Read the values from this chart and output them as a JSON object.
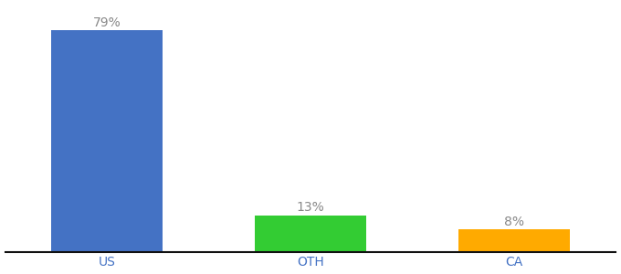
{
  "categories": [
    "US",
    "OTH",
    "CA"
  ],
  "values": [
    79,
    13,
    8
  ],
  "bar_colors": [
    "#4472c4",
    "#33cc33",
    "#ffaa00"
  ],
  "labels": [
    "79%",
    "13%",
    "8%"
  ],
  "label_color": "#888888",
  "background_color": "#ffffff",
  "ylim": [
    0,
    88
  ],
  "bar_width": 0.55,
  "label_fontsize": 10,
  "tick_fontsize": 10,
  "tick_color": "#4472c4",
  "spine_color": "#111111",
  "figsize": [
    6.8,
    3.0
  ],
  "dpi": 100,
  "x_positions": [
    1,
    2,
    3
  ]
}
